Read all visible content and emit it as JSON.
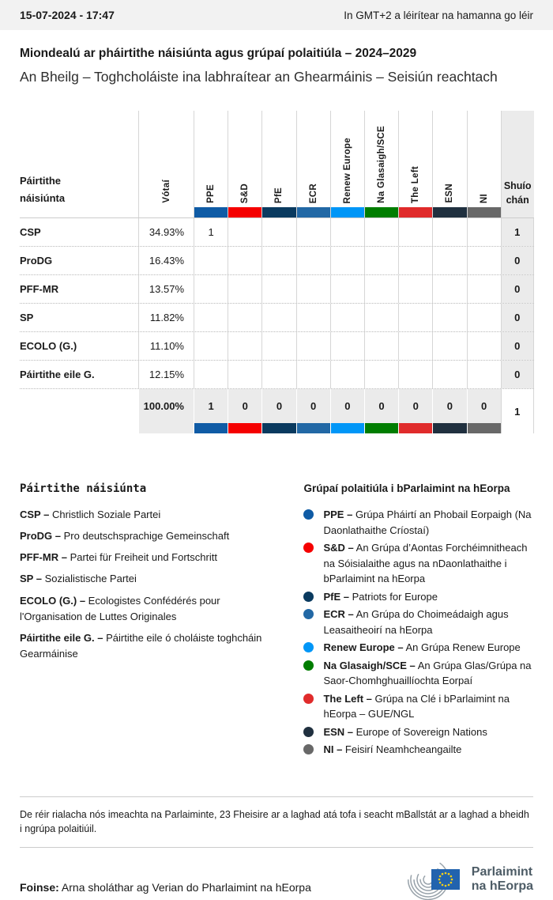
{
  "header": {
    "date": "15-07-2024 - 17:47",
    "timezone_note": "In GMT+2 a léirítear na hamanna go léir"
  },
  "title": "Miondealú ar pháirtithe náisiúnta agus grúpaí polaitiúla – 2024–2029",
  "subtitle": "An Bheilg – Toghcholáiste ina labhraítear an Ghearmáinis – Seisiún reachtach",
  "table": {
    "first_col_header": "Páirtithe náisiúnta",
    "votes_header": "Vótaí",
    "seats_header": "Shuíochán",
    "groups": [
      {
        "label": "PPE",
        "color": "#0F5BA5"
      },
      {
        "label": "S&D",
        "color": "#F50000"
      },
      {
        "label": "PfE",
        "color": "#0A3A5F"
      },
      {
        "label": "ECR",
        "color": "#2268A5"
      },
      {
        "label": "Renew Europe",
        "color": "#0096F7"
      },
      {
        "label": "Na Glasaigh/SCE",
        "color": "#007D00"
      },
      {
        "label": "The Left",
        "color": "#E02B2B"
      },
      {
        "label": "ESN",
        "color": "#20303F"
      },
      {
        "label": "NI",
        "color": "#686868"
      }
    ],
    "rows": [
      {
        "party": "CSP",
        "votes": "34.93%",
        "by_group": [
          "1",
          "",
          "",
          "",
          "",
          "",
          "",
          "",
          ""
        ],
        "seats": "1"
      },
      {
        "party": "ProDG",
        "votes": "16.43%",
        "by_group": [
          "",
          "",
          "",
          "",
          "",
          "",
          "",
          "",
          ""
        ],
        "seats": "0"
      },
      {
        "party": "PFF-MR",
        "votes": "13.57%",
        "by_group": [
          "",
          "",
          "",
          "",
          "",
          "",
          "",
          "",
          ""
        ],
        "seats": "0"
      },
      {
        "party": "SP",
        "votes": "11.82%",
        "by_group": [
          "",
          "",
          "",
          "",
          "",
          "",
          "",
          "",
          ""
        ],
        "seats": "0"
      },
      {
        "party": "ECOLO (G.)",
        "votes": "11.10%",
        "by_group": [
          "",
          "",
          "",
          "",
          "",
          "",
          "",
          "",
          ""
        ],
        "seats": "0"
      },
      {
        "party": "Páirtithe eile G.",
        "votes": "12.15%",
        "by_group": [
          "",
          "",
          "",
          "",
          "",
          "",
          "",
          "",
          ""
        ],
        "seats": "0"
      }
    ],
    "total": {
      "votes": "100.00%",
      "by_group": [
        "1",
        "0",
        "0",
        "0",
        "0",
        "0",
        "0",
        "0",
        "0"
      ],
      "seats": "1"
    }
  },
  "legend_parties": {
    "heading": "Páirtithe náisiúnta",
    "dash": "–",
    "items": [
      {
        "abbr": "CSP",
        "name": "Christlich Soziale Partei"
      },
      {
        "abbr": "ProDG",
        "name": "Pro deutschsprachige Gemeinschaft"
      },
      {
        "abbr": "PFF-MR",
        "name": "Partei für Freiheit und Fortschritt"
      },
      {
        "abbr": "SP",
        "name": "Sozialistische Partei"
      },
      {
        "abbr": "ECOLO (G.)",
        "name": "Ecologistes Confédérés pour l'Organisation de Luttes Originales"
      },
      {
        "abbr": "Páirtithe eile G.",
        "name": "Páirtithe eile ó choláiste toghcháin Gearmáinise"
      }
    ]
  },
  "legend_groups": {
    "heading": "Grúpaí polaitiúla i bParlaimint na hEorpa",
    "dash": "–",
    "items": [
      {
        "abbr": "PPE",
        "color": "#0F5BA5",
        "desc": "Grúpa Pháirtí an Phobail Eorpaigh (Na Daonlathaithe Críostaí)"
      },
      {
        "abbr": "S&D",
        "color": "#F50000",
        "desc": "An Grúpa d’Aontas Forchéimnitheach na Sóisialaithe agus na nDaonlathaithe i bParlaimint na hEorpa"
      },
      {
        "abbr": "PfE",
        "color": "#0A3A5F",
        "desc": "Patriots for Europe"
      },
      {
        "abbr": "ECR",
        "color": "#2268A5",
        "desc": "An Grúpa do Choimeádaigh agus Leasaitheoirí na hEorpa"
      },
      {
        "abbr": "Renew Europe",
        "color": "#0096F7",
        "desc": "An Grúpa Renew Europe"
      },
      {
        "abbr": "Na Glasaigh/SCE",
        "color": "#007D00",
        "desc": "An Grúpa Glas/Grúpa na Saor-Chomhghuaillíochta Eorpaí"
      },
      {
        "abbr": "The Left",
        "color": "#E02B2B",
        "desc": "Grúpa na Clé i bParlaimint na hEorpa – GUE/NGL"
      },
      {
        "abbr": "ESN",
        "color": "#20303F",
        "desc": "Europe of Sovereign Nations"
      },
      {
        "abbr": "NI",
        "color": "#686868",
        "desc": "Feisirí Neamhcheangailte"
      }
    ]
  },
  "footnote": "De réir rialacha nós imeachta na Parlaiminte, 23 Fheisire ar a laghad atá tofa i seacht mBallstát ar a laghad a bheidh i ngrúpa polaitiúil.",
  "source": {
    "label": "Foinse:",
    "text": "Arna sholáthar ag Verian do Pharlaimint na hEorpa"
  },
  "logo": {
    "line1": "Parlaimint",
    "line2": "na hEorpa"
  },
  "chart_data": {
    "type": "table",
    "title": "Miondealú ar pháirtithe náisiúnta agus grúpaí polaitiúla – 2024–2029",
    "subtitle": "An Bheilg – Toghcholáiste ina labhraítear an Ghearmáinis – Seisiún reachtach",
    "columns": [
      "Páirtithe náisiúnta",
      "Vótaí",
      "PPE",
      "S&D",
      "PfE",
      "ECR",
      "Renew Europe",
      "Na Glasaigh/SCE",
      "The Left",
      "ESN",
      "NI",
      "Shuíochán"
    ],
    "rows": [
      [
        "CSP",
        "34.93%",
        1,
        null,
        null,
        null,
        null,
        null,
        null,
        null,
        null,
        1
      ],
      [
        "ProDG",
        "16.43%",
        null,
        null,
        null,
        null,
        null,
        null,
        null,
        null,
        null,
        0
      ],
      [
        "PFF-MR",
        "13.57%",
        null,
        null,
        null,
        null,
        null,
        null,
        null,
        null,
        null,
        0
      ],
      [
        "SP",
        "11.82%",
        null,
        null,
        null,
        null,
        null,
        null,
        null,
        null,
        null,
        0
      ],
      [
        "ECOLO (G.)",
        "11.10%",
        null,
        null,
        null,
        null,
        null,
        null,
        null,
        null,
        null,
        0
      ],
      [
        "Páirtithe eile G.",
        "12.15%",
        null,
        null,
        null,
        null,
        null,
        null,
        null,
        null,
        null,
        0
      ],
      [
        "",
        "100.00%",
        1,
        0,
        0,
        0,
        0,
        0,
        0,
        0,
        0,
        1
      ]
    ]
  }
}
